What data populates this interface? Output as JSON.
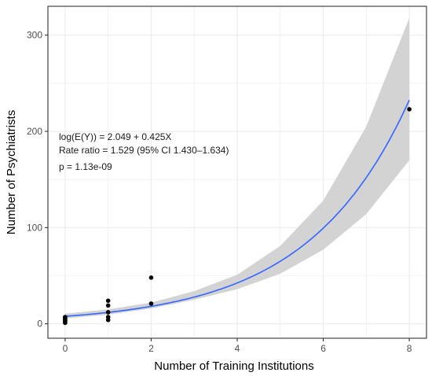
{
  "chart_data": {
    "type": "scatter",
    "xlabel": "Number of Training Institutions",
    "ylabel": "Number of Psychiatrists",
    "xlim": [
      -0.4,
      8.4
    ],
    "ylim": [
      -15,
      330
    ],
    "x_ticks": [
      0,
      2,
      4,
      6,
      8
    ],
    "y_ticks": [
      0,
      100,
      200,
      300
    ],
    "grid": true,
    "points": [
      {
        "x": 0,
        "y": 1
      },
      {
        "x": 0,
        "y": 2
      },
      {
        "x": 0,
        "y": 3
      },
      {
        "x": 0,
        "y": 4
      },
      {
        "x": 0,
        "y": 5
      },
      {
        "x": 0,
        "y": 6
      },
      {
        "x": 0,
        "y": 7
      },
      {
        "x": 1,
        "y": 4
      },
      {
        "x": 1,
        "y": 7
      },
      {
        "x": 1,
        "y": 12
      },
      {
        "x": 1,
        "y": 19
      },
      {
        "x": 1,
        "y": 24
      },
      {
        "x": 2,
        "y": 21
      },
      {
        "x": 2,
        "y": 48
      },
      {
        "x": 8,
        "y": 223
      }
    ],
    "fit": {
      "model": "log(E(Y)) = 2.049 + 0.425X",
      "intercept": 2.049,
      "slope": 0.425,
      "x_range": [
        -0.05,
        8
      ],
      "ci_band": [
        {
          "x": 0,
          "lo": 5.5,
          "hi": 10.5
        },
        {
          "x": 1,
          "lo": 9.5,
          "hi": 15
        },
        {
          "x": 2,
          "lo": 16,
          "hi": 22
        },
        {
          "x": 3,
          "lo": 25,
          "hi": 34
        },
        {
          "x": 4,
          "lo": 36,
          "hi": 51
        },
        {
          "x": 5,
          "lo": 52,
          "hi": 81
        },
        {
          "x": 6,
          "lo": 77,
          "hi": 128
        },
        {
          "x": 7,
          "lo": 114,
          "hi": 205
        },
        {
          "x": 8,
          "lo": 170,
          "hi": 318
        }
      ]
    },
    "annotations": [
      "log(E(Y)) = 2.049 + 0.425X",
      "Rate ratio = 1.529 (95% CI 1.430–1.634)",
      "p = 1.13e-09"
    ],
    "colors": {
      "fit_line": "#3366ff",
      "ci_band": "#d3d3d3",
      "points": "#000000",
      "grid": "#ebebeb"
    }
  }
}
